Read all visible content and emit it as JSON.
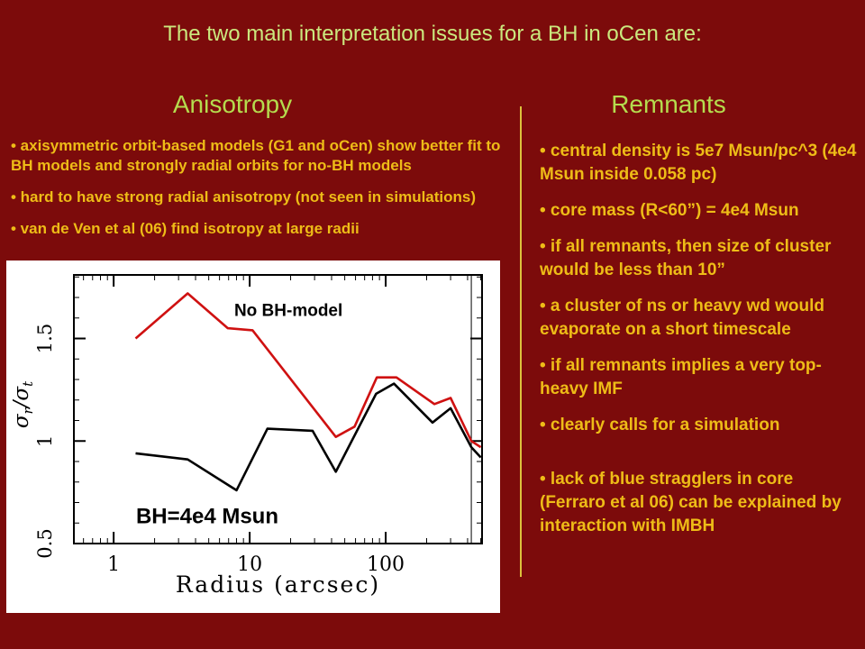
{
  "slide": {
    "title": "The two main interpretation issues for a BH in oCen are:",
    "bullet_char": "•",
    "colors": {
      "background": "#7c0b0b",
      "title_text": "#cbe87e",
      "header_text": "#b5dc4e",
      "bullet_text": "#eebc17",
      "divider": "#dcc13c",
      "plot_background": "#ffffff"
    },
    "left": {
      "header": "Anisotropy",
      "bullets": [
        "axisymmetric orbit-based models (G1 and oCen) show better fit to BH models and strongly radial orbits for no-BH models",
        "hard to have strong radial anisotropy (not seen in simulations)",
        "van de Ven et al (06) find isotropy at large radii"
      ]
    },
    "right": {
      "header": "Remnants",
      "bullets": [
        "central density is 5e7 Msun/pc^3 (4e4 Msun inside 0.058 pc)",
        "core mass (R<60”) = 4e4 Msun",
        "if all remnants, then size of cluster would be less than 10”",
        "a cluster of ns or heavy wd would evaporate on a short timescale",
        "if all remnants implies a very top-heavy IMF",
        "clearly calls for a simulation"
      ],
      "bullets_lower": [
        "lack of blue stragglers in core (Ferraro et al 06) can be explained by interaction with IMBH"
      ]
    }
  },
  "chart_data": {
    "type": "line",
    "title": "",
    "xlabel": "Radius (arcsec)",
    "ylabel": "σ_r/σ_t",
    "x_scale": "log",
    "y_scale": "linear",
    "xlim": [
      0.51,
      511
    ],
    "ylim": [
      0.5,
      1.81
    ],
    "x_ticks": [
      1,
      10,
      100
    ],
    "y_ticks": [
      0.5,
      1,
      1.5
    ],
    "grid": false,
    "legend_position": "none",
    "vertical_line_x": 426,
    "series": [
      {
        "name": "No BH-model",
        "color": "#cf1111",
        "x": [
          1.45,
          3.5,
          6.9,
          10.5,
          43,
          59,
          86,
          120,
          228,
          300,
          426,
          500
        ],
        "y": [
          1.5,
          1.72,
          1.55,
          1.54,
          1.02,
          1.07,
          1.31,
          1.31,
          1.18,
          1.21,
          1.0,
          0.97
        ]
      },
      {
        "name": "BH=4e4 Msun",
        "color": "#000000",
        "x": [
          1.45,
          3.5,
          8,
          13.5,
          29,
          43,
          85,
          115,
          221,
          300,
          426,
          500
        ],
        "y": [
          0.94,
          0.91,
          0.76,
          1.06,
          1.05,
          0.85,
          1.23,
          1.28,
          1.09,
          1.16,
          0.97,
          0.92
        ]
      }
    ],
    "annotations": [
      {
        "text": "No BH-model",
        "x": 7.7,
        "y": 1.61,
        "size": 19
      },
      {
        "text": "BH=4e4 Msun",
        "x": 1.46,
        "y": 0.6,
        "size": 24
      }
    ]
  }
}
